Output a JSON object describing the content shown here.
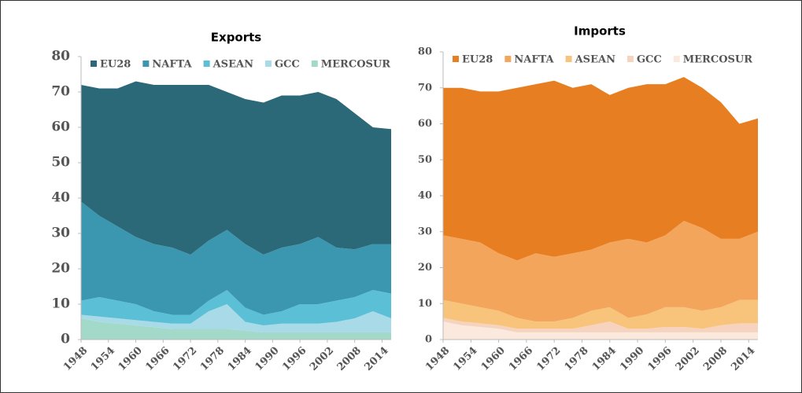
{
  "chart_data": [
    {
      "type": "stacked_area",
      "title": "Exports",
      "x": [
        1948,
        1952,
        1956,
        1960,
        1964,
        1968,
        1972,
        1976,
        1980,
        1984,
        1988,
        1992,
        1996,
        2000,
        2004,
        2008,
        2012,
        2016
      ],
      "xlim": [
        1948,
        2016
      ],
      "xticks": [
        1948,
        1954,
        1960,
        1966,
        1972,
        1978,
        1984,
        1990,
        1996,
        2002,
        2008,
        2014
      ],
      "ylim": [
        0,
        80
      ],
      "yticks": [
        0,
        10,
        20,
        30,
        40,
        50,
        60,
        70,
        80
      ],
      "series": [
        {
          "name": "EU28",
          "color": "#2b6878",
          "values": [
            33,
            36,
            39,
            44,
            45,
            46,
            48,
            44,
            39,
            41,
            43,
            43,
            42,
            41,
            42,
            38.5,
            33,
            32.5
          ]
        },
        {
          "name": "NAFTA",
          "color": "#3b97b0",
          "values": [
            28,
            23,
            21,
            19,
            19,
            19,
            17,
            17,
            17,
            18,
            17,
            18,
            17,
            19,
            15,
            13.5,
            13,
            14
          ]
        },
        {
          "name": "ASEAN",
          "color": "#5bbfd6",
          "values": [
            4,
            5.5,
            5,
            4.5,
            3,
            2.5,
            2.5,
            3,
            4,
            4,
            3,
            3.5,
            5.5,
            5.5,
            6,
            6,
            6,
            7
          ]
        },
        {
          "name": "GCC",
          "color": "#a8dae8",
          "values": [
            1,
            1.5,
            1.5,
            1.5,
            1.5,
            1.5,
            1.5,
            5,
            7,
            2.5,
            2,
            2.5,
            2.5,
            2.5,
            3,
            4,
            6,
            4
          ]
        },
        {
          "name": "MERCOSUR",
          "color": "#a3d9c9",
          "values": [
            6,
            5,
            4.5,
            4,
            3.5,
            3,
            3,
            3,
            3,
            2.5,
            2,
            2,
            2,
            2,
            2,
            2,
            2,
            2
          ]
        }
      ]
    },
    {
      "type": "stacked_area",
      "title": "Imports",
      "x": [
        1948,
        1952,
        1956,
        1960,
        1964,
        1968,
        1972,
        1976,
        1980,
        1984,
        1988,
        1992,
        1996,
        2000,
        2004,
        2008,
        2012,
        2016
      ],
      "xlim": [
        1948,
        2016
      ],
      "xticks": [
        1948,
        1954,
        1960,
        1966,
        1972,
        1978,
        1984,
        1990,
        1996,
        2002,
        2008,
        2014
      ],
      "ylim": [
        0,
        80
      ],
      "yticks": [
        0,
        10,
        20,
        30,
        40,
        50,
        60,
        70,
        80
      ],
      "series": [
        {
          "name": "EU28",
          "color": "#e87e22",
          "values": [
            41,
            42,
            42,
            45,
            48,
            47,
            49,
            46,
            46,
            41,
            42,
            44,
            42,
            40,
            39,
            38,
            32,
            31.5
          ]
        },
        {
          "name": "NAFTA",
          "color": "#f4a55c",
          "values": [
            18,
            18,
            18,
            16,
            16,
            19,
            18,
            18,
            17,
            18,
            22,
            20,
            20,
            24,
            23,
            19,
            17,
            19
          ]
        },
        {
          "name": "ASEAN",
          "color": "#f8c47c",
          "values": [
            5,
            5,
            4.5,
            4,
            3,
            2,
            2,
            3,
            4,
            4,
            3,
            4,
            5.5,
            5.5,
            5,
            5,
            6.5,
            6.5
          ]
        },
        {
          "name": "GCC",
          "color": "#f6d3bf",
          "values": [
            1,
            1,
            1,
            1,
            1,
            1,
            1,
            1,
            2,
            3,
            1,
            1,
            1.5,
            1.5,
            1,
            2,
            2.5,
            2.5
          ]
        },
        {
          "name": "MERCOSUR",
          "color": "#fbe9dd",
          "values": [
            5,
            4,
            3.5,
            3,
            2,
            2,
            2,
            2,
            2,
            2,
            2,
            2,
            2,
            2,
            2,
            2,
            2,
            2
          ]
        }
      ]
    }
  ]
}
